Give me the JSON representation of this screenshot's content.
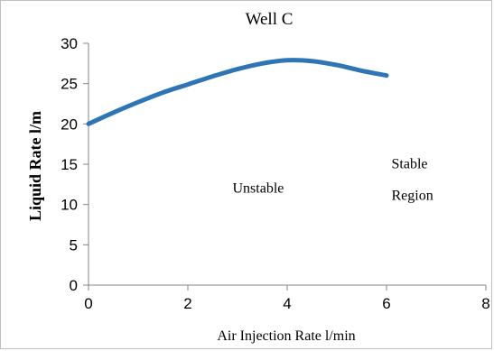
{
  "chart_data": {
    "type": "line",
    "title": "Well C",
    "xlabel": "Air Injection Rate l/min",
    "ylabel": "Liquid Rate l/m",
    "xlim": [
      0,
      8
    ],
    "ylim": [
      0,
      30
    ],
    "x_ticks": [
      0,
      2,
      4,
      6,
      8
    ],
    "y_ticks": [
      0,
      5,
      10,
      15,
      20,
      25,
      30
    ],
    "grid": false,
    "series": [
      {
        "color": "#2E75B6",
        "x": [
          0,
          0.5,
          1,
          1.5,
          2,
          2.5,
          3,
          3.5,
          4,
          4.5,
          5,
          5.5,
          6
        ],
        "y": [
          20,
          21.4,
          22.7,
          23.9,
          24.9,
          25.9,
          26.8,
          27.5,
          27.9,
          27.8,
          27.3,
          26.6,
          26
        ]
      }
    ],
    "annotations": [
      {
        "text": "Unstable",
        "x": 2.9,
        "y": 11.5
      },
      {
        "text": "Stable",
        "x": 6.1,
        "y": 14.5
      },
      {
        "text": "Region",
        "x": 6.1,
        "y": 10.6
      }
    ]
  }
}
